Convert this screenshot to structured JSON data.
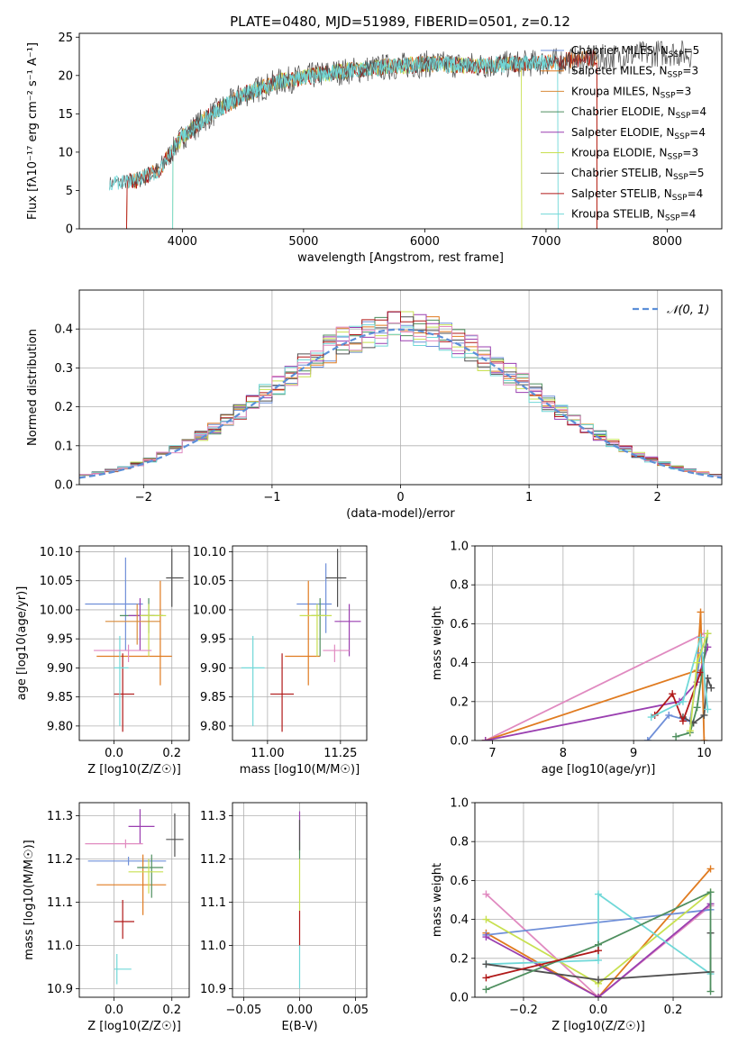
{
  "figure_title": "PLATE=0480, MJD=51989, FIBERID=0501, z=0.12",
  "colors": {
    "Chabrier MILES": "#6f8fd8",
    "Salpeter MILES": "#e07b20",
    "Kroupa MILES": "#d98b3a",
    "Chabrier ELODIE": "#4f8f5f",
    "Salpeter ELODIE": "#9a3fb0",
    "Kroupa ELODIE": "#c8e050",
    "Chabrier STELIB": "#505050",
    "Salpeter STELIB": "#b01818",
    "Kroupa STELIB": "#70d8d8",
    "pink": "#e08ac0",
    "green": "#60a060",
    "normal": "#5b8fd8"
  },
  "chart_data": [
    {
      "id": "spectrum",
      "type": "line",
      "title": "PLATE=0480, MJD=51989, FIBERID=0501, z=0.12",
      "xlabel": "wavelength [Angstrom, rest frame]",
      "ylabel": "Flux [fλ10⁻¹⁷ erg cm⁻² s⁻¹ A⁻¹]",
      "xlim": [
        3150,
        8450
      ],
      "ylim": [
        0,
        25.5
      ],
      "xticks": [
        4000,
        5000,
        6000,
        7000,
        8000
      ],
      "yticks": [
        0,
        5,
        10,
        15,
        20,
        25
      ],
      "continuum_nodes": [
        [
          3400,
          6
        ],
        [
          3600,
          6.2
        ],
        [
          3800,
          7.5
        ],
        [
          4000,
          12
        ],
        [
          4200,
          14.5
        ],
        [
          4500,
          17.5
        ],
        [
          4800,
          19.2
        ],
        [
          5200,
          20.3
        ],
        [
          5600,
          21
        ],
        [
          6000,
          21.5
        ],
        [
          6500,
          21.3
        ],
        [
          7000,
          21.7
        ],
        [
          7200,
          22
        ],
        [
          7400,
          22.2
        ],
        [
          7600,
          22.5
        ],
        [
          8000,
          23
        ],
        [
          8200,
          22.8
        ]
      ],
      "legend": [
        {
          "label": "Chabrier MILES, N_SSP=5",
          "color": "#6f8fd8"
        },
        {
          "label": "Salpeter MILES, N_SSP=3",
          "color": "#e07b20"
        },
        {
          "label": "Kroupa MILES, N_SSP=3",
          "color": "#d98b3a"
        },
        {
          "label": "Chabrier ELODIE, N_SSP=4",
          "color": "#4f8f5f"
        },
        {
          "label": "Salpeter ELODIE, N_SSP=4",
          "color": "#9a3fb0"
        },
        {
          "label": "Kroupa ELODIE, N_SSP=3",
          "color": "#c8e050"
        },
        {
          "label": "Chabrier STELIB, N_SSP=5",
          "color": "#505050"
        },
        {
          "label": "Salpeter STELIB, N_SSP=4",
          "color": "#b01818"
        },
        {
          "label": "Kroupa STELIB, N_SSP=4",
          "color": "#70d8d8"
        }
      ],
      "model_ranges": [
        {
          "color": "#e07b20",
          "start": 3540,
          "end": 7420
        },
        {
          "color": "#c8e050",
          "start": 3920,
          "end": 6800
        },
        {
          "color": "#b01818",
          "start": 3540,
          "end": 7420
        },
        {
          "color": "#70d8d8",
          "start": 3920,
          "end": 7100
        }
      ]
    },
    {
      "id": "residuals",
      "type": "line",
      "xlabel": "(data-model)/error",
      "ylabel": "Normed distribution",
      "xlim": [
        -2.5,
        2.5
      ],
      "ylim": [
        0,
        0.5
      ],
      "xticks": [
        -2,
        -1,
        0,
        1,
        2
      ],
      "yticks": [
        0.0,
        0.1,
        0.2,
        0.3,
        0.4
      ],
      "legend": "N(0,1)",
      "bin_width": 0.1,
      "normal": {
        "mean": 0,
        "sigma": 1
      }
    },
    {
      "id": "age_vs_Z",
      "type": "scatter",
      "xlabel": "Z [log10(Z/Z☉)]",
      "ylabel": "age  [log10(age/yr)]",
      "xlim": [
        -0.12,
        0.26
      ],
      "ylim": [
        9.775,
        10.11
      ],
      "xticks": [
        0.0,
        0.2
      ],
      "yticks": [
        9.8,
        9.85,
        9.9,
        9.95,
        10.0,
        10.05,
        10.1
      ],
      "points": [
        {
          "color": "#6f8fd8",
          "x": 0.04,
          "xerr": [
            0.14,
            0.06
          ],
          "y": 10.01,
          "yerr": [
            0.08,
            0.08
          ]
        },
        {
          "color": "#e07b20",
          "x": 0.16,
          "xerr": [
            0.22,
            0.04
          ],
          "y": 9.92,
          "yerr": [
            0.05,
            0.13
          ]
        },
        {
          "color": "#4f8f5f",
          "x": 0.12,
          "xerr": [
            0.1,
            0.05
          ],
          "y": 9.99,
          "yerr": [
            0.03,
            0.03
          ]
        },
        {
          "color": "#9a3fb0",
          "x": 0.09,
          "xerr": [
            0.04,
            0.05
          ],
          "y": 9.99,
          "yerr": [
            0.06,
            0.03
          ]
        },
        {
          "color": "#c8e050",
          "x": 0.12,
          "xerr": [
            0.03,
            0.06
          ],
          "y": 9.99,
          "yerr": [
            0.07,
            0.02
          ]
        },
        {
          "color": "#505050",
          "x": 0.2,
          "xerr": [
            0.02,
            0.04
          ],
          "y": 10.055,
          "yerr": [
            0.05,
            0.05
          ]
        },
        {
          "color": "#b01818",
          "x": 0.03,
          "xerr": [
            0.03,
            0.04
          ],
          "y": 9.855,
          "yerr": [
            0.065,
            0.07
          ]
        },
        {
          "color": "#70d8d8",
          "x": 0.02,
          "xerr": [
            0.02,
            0.03
          ],
          "y": 9.9,
          "yerr": [
            0.1,
            0.055
          ]
        },
        {
          "color": "#e08ac0",
          "x": 0.05,
          "xerr": [
            0.12,
            0.08
          ],
          "y": 9.93,
          "yerr": [
            0.02,
            0.01
          ]
        },
        {
          "color": "#d98b3a",
          "x": 0.08,
          "xerr": [
            0.11,
            0.08
          ],
          "y": 9.98,
          "yerr": [
            0.04,
            0.03
          ]
        }
      ]
    },
    {
      "id": "age_vs_mass",
      "type": "scatter",
      "xlabel": "mass [log10(M/M☉)]",
      "ylabel": "",
      "xlim": [
        10.88,
        11.34
      ],
      "ylim": [
        9.775,
        10.11
      ],
      "xticks": [
        11.0,
        11.25
      ],
      "yticks": [
        9.8,
        9.85,
        9.9,
        9.95,
        10.0,
        10.05,
        10.1
      ],
      "points": [
        {
          "color": "#6f8fd8",
          "x": 11.2,
          "xerr": [
            0.1,
            0.02
          ],
          "y": 10.01,
          "yerr": [
            0.05,
            0.07
          ]
        },
        {
          "color": "#e07b20",
          "x": 11.14,
          "xerr": [
            0.08,
            0.04
          ],
          "y": 9.92,
          "yerr": [
            0.05,
            0.13
          ]
        },
        {
          "color": "#4f8f5f",
          "x": 11.18,
          "xerr": [
            0.03,
            0.02
          ],
          "y": 9.99,
          "yerr": [
            0.07,
            0.03
          ]
        },
        {
          "color": "#9a3fb0",
          "x": 11.28,
          "xerr": [
            0.05,
            0.04
          ],
          "y": 9.98,
          "yerr": [
            0.06,
            0.03
          ]
        },
        {
          "color": "#c8e050",
          "x": 11.17,
          "xerr": [
            0.06,
            0.05
          ],
          "y": 9.99,
          "yerr": [
            0.07,
            0.02
          ]
        },
        {
          "color": "#505050",
          "x": 11.24,
          "xerr": [
            0.04,
            0.03
          ],
          "y": 10.055,
          "yerr": [
            0.05,
            0.05
          ]
        },
        {
          "color": "#b01818",
          "x": 11.05,
          "xerr": [
            0.04,
            0.04
          ],
          "y": 9.855,
          "yerr": [
            0.065,
            0.07
          ]
        },
        {
          "color": "#70d8d8",
          "x": 10.95,
          "xerr": [
            0.04,
            0.04
          ],
          "y": 9.9,
          "yerr": [
            0.1,
            0.055
          ]
        },
        {
          "color": "#e08ac0",
          "x": 11.23,
          "xerr": [
            0.04,
            0.05
          ],
          "y": 9.93,
          "yerr": [
            0.02,
            0.01
          ]
        }
      ]
    },
    {
      "id": "mass_weight_vs_age",
      "type": "line",
      "xlabel": "age  [log10(age/yr)]",
      "ylabel": "mass weight",
      "xlim": [
        6.75,
        10.25
      ],
      "ylim": [
        0,
        1.0
      ],
      "xticks": [
        7,
        8,
        9,
        10
      ],
      "yticks": [
        0.0,
        0.2,
        0.4,
        0.6,
        0.8,
        1.0
      ],
      "series": [
        {
          "color": "#e08ac0",
          "x": [
            6.9,
            10.0
          ],
          "y": [
            0.0,
            0.55
          ]
        },
        {
          "color": "#e07b20",
          "x": [
            6.9,
            9.9,
            9.95,
            10.0
          ],
          "y": [
            0.0,
            0.36,
            0.66,
            0.0
          ]
        },
        {
          "color": "#9a3fb0",
          "x": [
            6.9,
            9.65,
            9.9,
            10.05
          ],
          "y": [
            0.0,
            0.2,
            0.3,
            0.48
          ]
        },
        {
          "color": "#6f8fd8",
          "x": [
            9.2,
            9.5,
            9.8,
            9.95
          ],
          "y": [
            0.0,
            0.13,
            0.1,
            0.45
          ]
        },
        {
          "color": "#4f8f5f",
          "x": [
            9.6,
            9.8,
            9.9,
            10.05
          ],
          "y": [
            0.02,
            0.04,
            0.17,
            0.55
          ]
        },
        {
          "color": "#505050",
          "x": [
            9.7,
            9.85,
            10.0,
            10.05,
            10.1
          ],
          "y": [
            0.12,
            0.09,
            0.13,
            0.32,
            0.27
          ]
        },
        {
          "color": "#b01818",
          "x": [
            9.3,
            9.55,
            9.7,
            9.95
          ],
          "y": [
            0.13,
            0.24,
            0.1,
            0.35
          ]
        },
        {
          "color": "#70d8d8",
          "x": [
            9.25,
            9.7,
            9.95,
            10.05
          ],
          "y": [
            0.12,
            0.2,
            0.53,
            0.16
          ]
        },
        {
          "color": "#c8e050",
          "x": [
            9.8,
            9.9,
            10.05
          ],
          "y": [
            0.05,
            0.4,
            0.55
          ]
        }
      ]
    },
    {
      "id": "mass_vs_Z",
      "type": "scatter",
      "xlabel": "Z [log10(Z/Z☉)]",
      "ylabel": "mass [log10(M/M☉)]",
      "xlim": [
        -0.12,
        0.26
      ],
      "ylim": [
        10.88,
        11.33
      ],
      "xticks": [
        0.0,
        0.2
      ],
      "yticks": [
        10.9,
        11.0,
        11.1,
        11.2,
        11.3
      ],
      "points": [
        {
          "color": "#6f8fd8",
          "x": 0.05,
          "xerr": [
            0.14,
            0.13
          ],
          "y": 11.195,
          "yerr": [
            0.01,
            0.01
          ]
        },
        {
          "color": "#e07b20",
          "x": 0.1,
          "xerr": [
            0.16,
            0.08
          ],
          "y": 11.14,
          "yerr": [
            0.07,
            0.07
          ]
        },
        {
          "color": "#4f8f5f",
          "x": 0.13,
          "xerr": [
            0.05,
            0.04
          ],
          "y": 11.18,
          "yerr": [
            0.07,
            0.03
          ]
        },
        {
          "color": "#9a3fb0",
          "x": 0.09,
          "xerr": [
            0.04,
            0.05
          ],
          "y": 11.275,
          "yerr": [
            0.04,
            0.04
          ]
        },
        {
          "color": "#c8e050",
          "x": 0.12,
          "xerr": [
            0.07,
            0.05
          ],
          "y": 11.17,
          "yerr": [
            0.05,
            0.03
          ]
        },
        {
          "color": "#505050",
          "x": 0.21,
          "xerr": [
            0.03,
            0.03
          ],
          "y": 11.245,
          "yerr": [
            0.04,
            0.06
          ]
        },
        {
          "color": "#b01818",
          "x": 0.03,
          "xerr": [
            0.03,
            0.04
          ],
          "y": 11.055,
          "yerr": [
            0.04,
            0.05
          ]
        },
        {
          "color": "#70d8d8",
          "x": 0.01,
          "xerr": [
            0.01,
            0.05
          ],
          "y": 10.945,
          "yerr": [
            0.035,
            0.035
          ]
        },
        {
          "color": "#e08ac0",
          "x": 0.04,
          "xerr": [
            0.14,
            0.06
          ],
          "y": 11.235,
          "yerr": [
            0.01,
            0.01
          ]
        }
      ]
    },
    {
      "id": "mass_vs_EBV",
      "type": "scatter",
      "xlabel": "E(B-V)",
      "ylabel": "",
      "xlim": [
        -0.06,
        0.06
      ],
      "ylim": [
        10.88,
        11.33
      ],
      "xticks": [
        -0.05,
        0.0,
        0.05
      ],
      "xticklabels": [
        "−0.05",
        "0.00",
        "0.05"
      ],
      "yticks": [
        10.9,
        11.0,
        11.1,
        11.2,
        11.3
      ],
      "segments": [
        {
          "color": "#70d8d8",
          "x": 0.0,
          "y0": 10.9,
          "y1": 11.0
        },
        {
          "color": "#b01818",
          "x": 0.0,
          "y0": 11.0,
          "y1": 11.08
        },
        {
          "color": "#c8e050",
          "x": 0.0,
          "y0": 11.08,
          "y1": 11.2
        },
        {
          "color": "#4f8f5f",
          "x": 0.0,
          "y0": 11.2,
          "y1": 11.24
        },
        {
          "color": "#9a3fb0",
          "x": 0.0,
          "y0": 11.24,
          "y1": 11.31
        },
        {
          "color": "#505050",
          "x": 0.0,
          "y0": 11.22,
          "y1": 11.29
        }
      ]
    },
    {
      "id": "mass_weight_vs_Z",
      "type": "line",
      "xlabel": "Z [log10(Z/Z☉)]",
      "ylabel": "mass weight",
      "xlim": [
        -0.33,
        0.33
      ],
      "ylim": [
        0,
        1.0
      ],
      "xticks": [
        -0.2,
        0.0,
        0.2
      ],
      "xticklabels": [
        "−0.2",
        "0.0",
        "0.2"
      ],
      "yticks": [
        0.0,
        0.2,
        0.4,
        0.6,
        0.8,
        1.0
      ],
      "series": [
        {
          "color": "#e08ac0",
          "x": [
            -0.3,
            0.0,
            0.3
          ],
          "y": [
            0.53,
            0.0,
            0.47
          ]
        },
        {
          "color": "#e07b20",
          "x": [
            -0.3,
            0.0,
            0.3
          ],
          "y": [
            0.33,
            0.0,
            0.66
          ]
        },
        {
          "color": "#6f8fd8",
          "x": [
            -0.3,
            0.3
          ],
          "y": [
            0.32,
            0.45
          ]
        },
        {
          "color": "#9a3fb0",
          "x": [
            -0.3,
            0.0,
            0.3
          ],
          "y": [
            0.31,
            0.0,
            0.48
          ]
        },
        {
          "color": "#c8e050",
          "x": [
            -0.3,
            0.0,
            0.3
          ],
          "y": [
            0.4,
            0.07,
            0.54
          ]
        },
        {
          "color": "#70d8d8",
          "x": [
            -0.3,
            0.0,
            0.0,
            0.3
          ],
          "y": [
            0.17,
            0.19,
            0.53,
            0.12
          ]
        },
        {
          "color": "#505050",
          "x": [
            -0.3,
            0.0,
            0.3,
            0.3
          ],
          "y": [
            0.17,
            0.09,
            0.13,
            0.33
          ]
        },
        {
          "color": "#4f8f5f",
          "x": [
            -0.3,
            0.0,
            0.3,
            0.3
          ],
          "y": [
            0.04,
            0.27,
            0.54,
            0.03
          ]
        },
        {
          "color": "#b01818",
          "x": [
            -0.3,
            0.0
          ],
          "y": [
            0.1,
            0.24
          ]
        }
      ]
    }
  ]
}
